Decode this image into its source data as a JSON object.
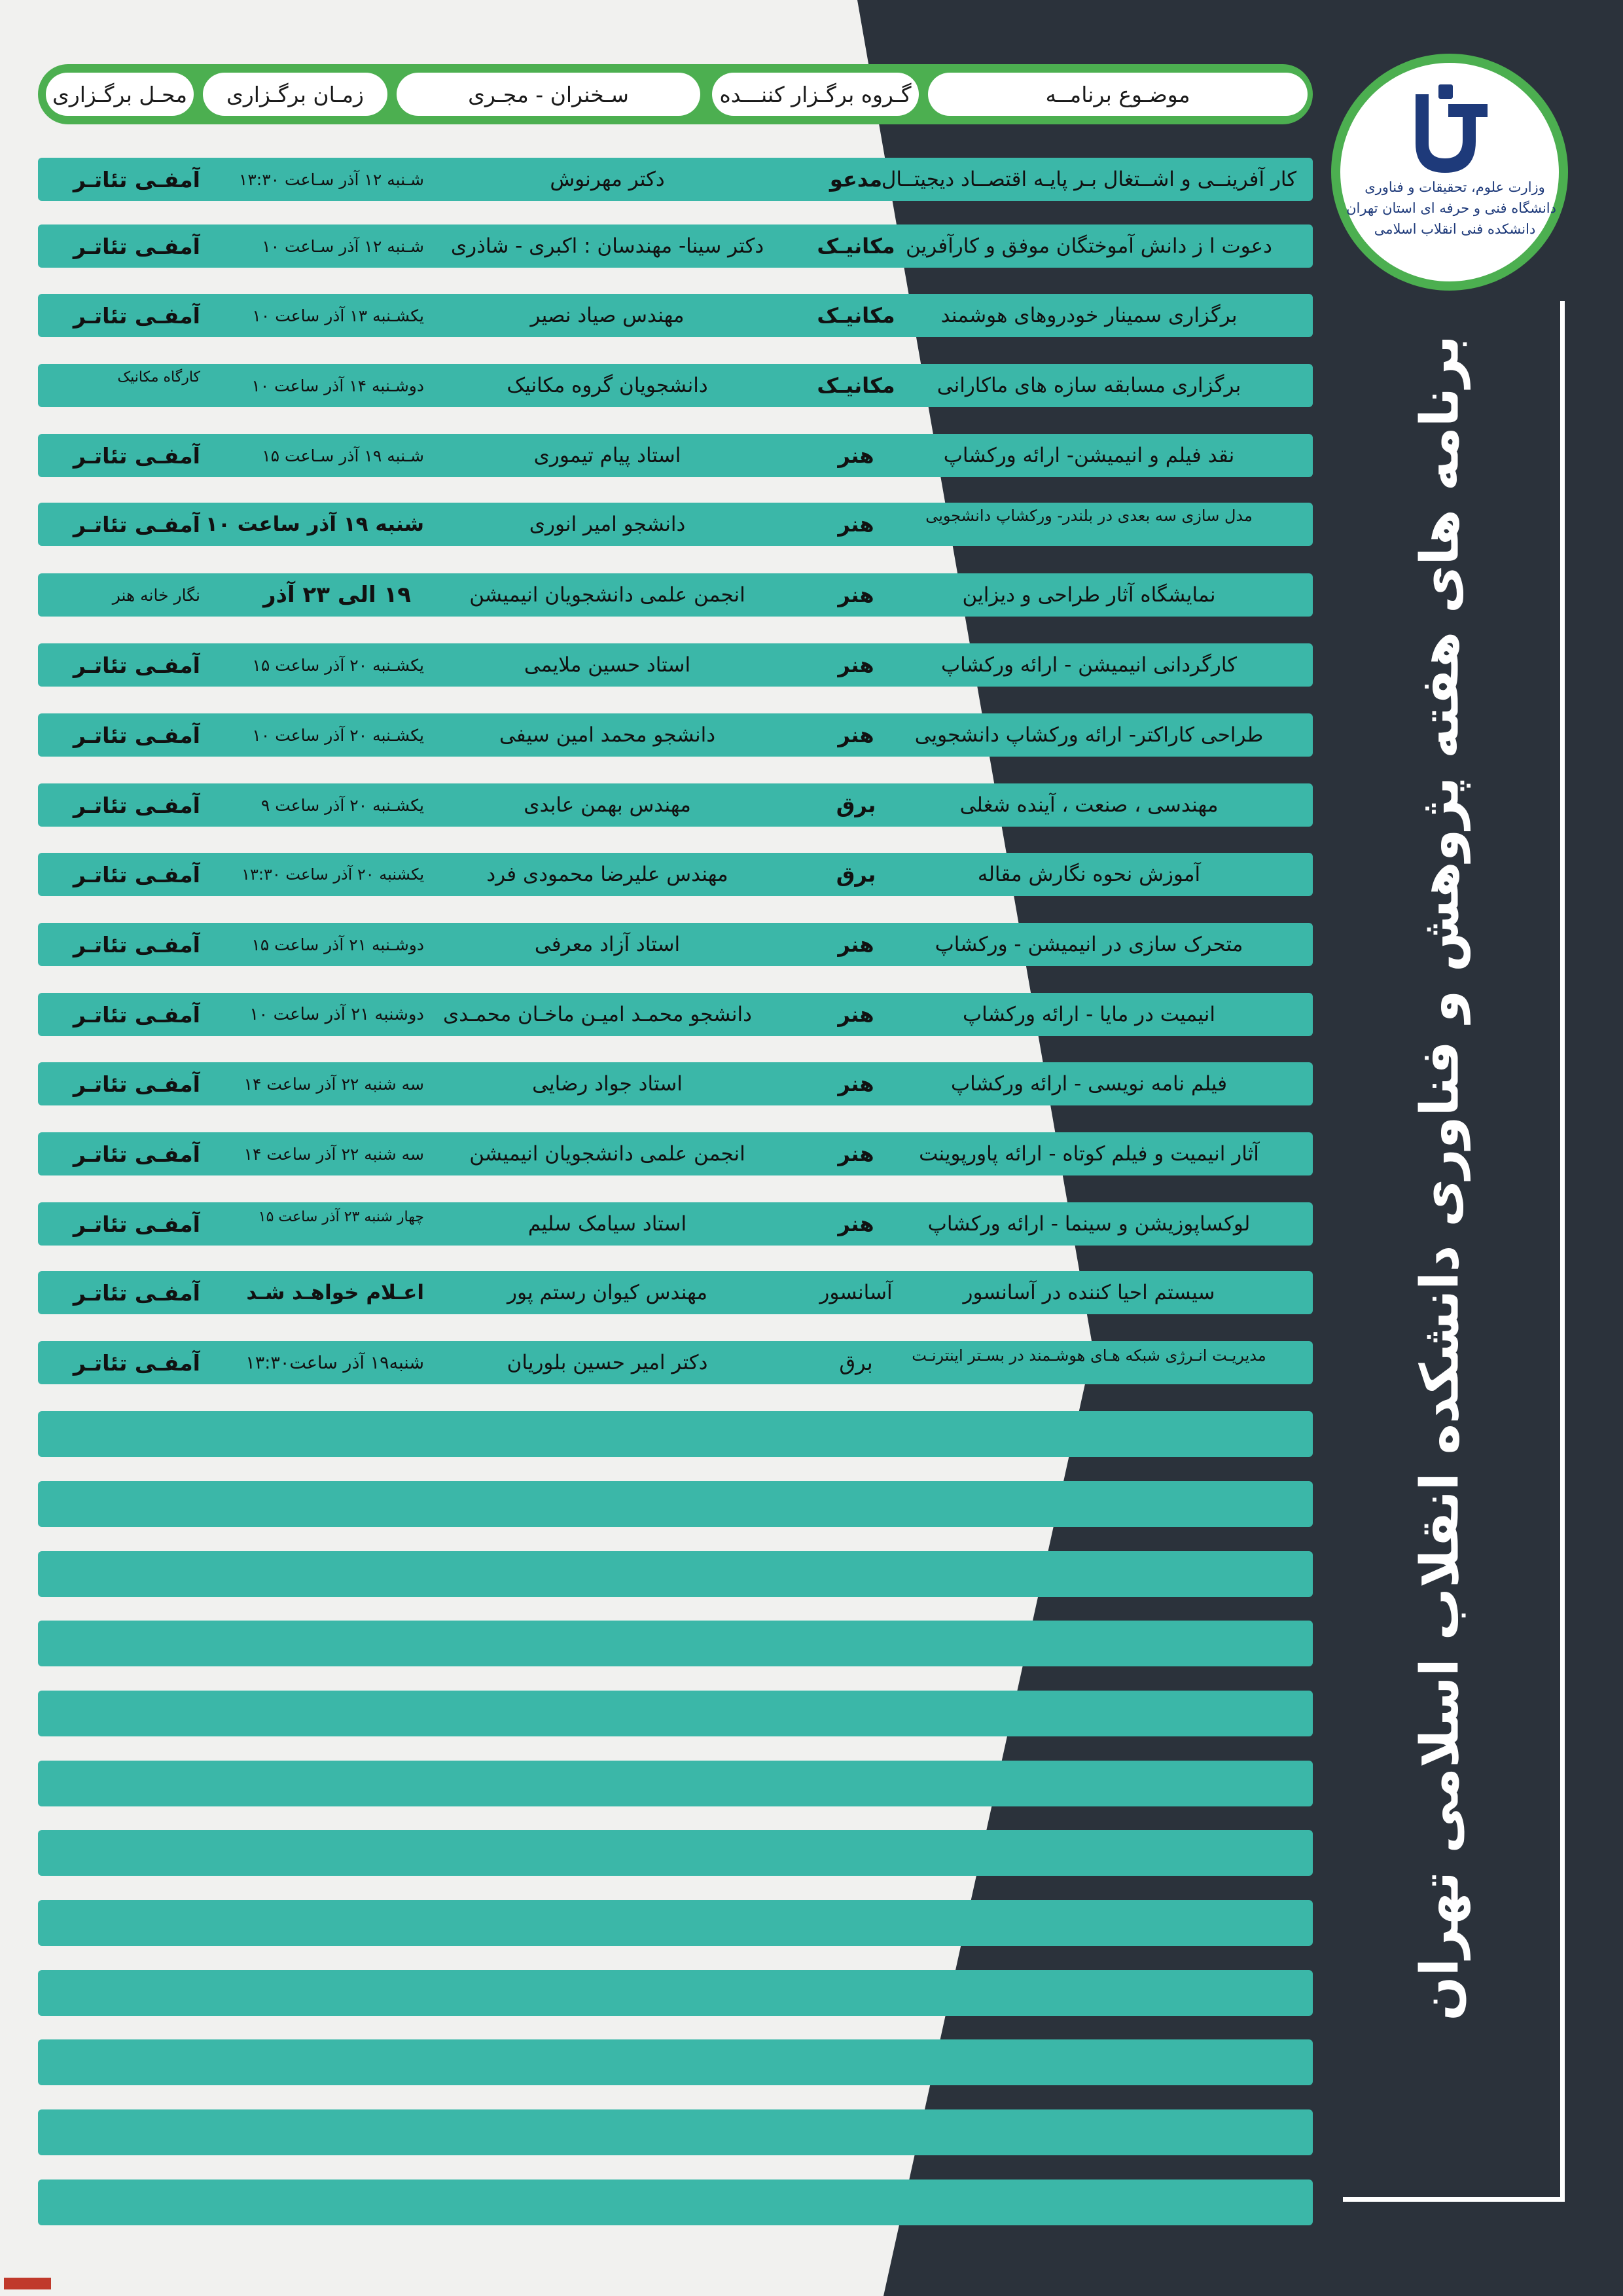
{
  "title": "برنامه های هفته پژوهش و فناوری دانشکده انقلاب اسلامی تهران",
  "logo": {
    "lines": [
      "وزارت علوم، تحقیقات و فناوری",
      "دانشگاه فنی و حرفه ای استان تهران",
      "دانشکده فنی انقلاب اسلامی"
    ],
    "color": "#1e3a7a"
  },
  "header": {
    "subject": "موضـوع برنامــه",
    "group": "گـروه برگـزار کننـــده",
    "speaker": "سـخنران - مجـری",
    "time": "زمـان برگـزاری",
    "location": "محـل برگـزاری"
  },
  "colors": {
    "accent": "#4caf50",
    "row": "#3bb7a8",
    "dark": "#2b323b"
  },
  "rows": [
    {
      "subject": "کار آفرینــی و اشــتغال بـر پایـه اقتصــاد دیجیتــال",
      "group": "مدعو",
      "speaker": "دکتر مهرنوش",
      "time": "شـنبه ۱۲ آذر سـاعت ۱۳:۳۰",
      "location": "آمفـی تئاتـر"
    },
    {
      "subject": "دعوت ا ز دانش آموختگان موفق و کارآفرین",
      "group": "مکانیـک",
      "speaker": "دکتر سینا- مهندسان : اکبری - شاذری",
      "time": "شـنبه ۱۲ آذر سـاعت ۱۰",
      "location": "آمفـی تئاتـر"
    },
    {
      "subject": "برگزاری سمینار خودروهای هوشمند",
      "group": "مکانیـک",
      "speaker": "مهندس صیاد نصیر",
      "time": "یکشـنبه ۱۳ آذر ساعت ۱۰",
      "location": "آمفـی تئاتـر"
    },
    {
      "subject": "برگزاری مسابقه سازه های ماکارانی",
      "group": "مکانیـک",
      "speaker": "دانشجویان گروه مکانیک",
      "time": "دوشـنبه ۱۴ آذر ساعت ۱۰",
      "location": "کارگاه مکانیک"
    },
    {
      "subject": "نقد فیلم و انیمیشن- ارائه ورکشاپ",
      "group": "هنر",
      "speaker": "استاد پیام تیموری",
      "time": "شـنبه ۱۹ آذر سـاعت ۱۵",
      "location": "آمفـی تئاتـر"
    },
    {
      "subject": "مدل سازی سه بعدی در بلندر- ورکشاپ دانشجویی",
      "group": "هنر",
      "speaker": "دانشجو امیر انوری",
      "time": "شنبه ۱۹ آذر ساعت ۱۰",
      "location": "آمفـی تئاتـر"
    },
    {
      "subject": "نمایشگاه آثار طراحی و دیزاین",
      "group": "هنر",
      "speaker": "انجمن علمی دانشجویان انیمیشن",
      "time": "۱۹  الی   ۲۳   آذر",
      "location": "نگار خانه هنر"
    },
    {
      "subject": "کارگردانی انیمیشن - ارائه ورکشاپ",
      "group": "هنر",
      "speaker": "استاد حسین ملایمی",
      "time": "یکشـنبه ۲۰ آذر ساعت ۱۵",
      "location": "آمفـی تئاتـر"
    },
    {
      "subject": "طراحی کاراکتر- ارائه  ورکشاپ دانشجویی",
      "group": "هنر",
      "speaker": "دانشجو محمد امین سیفی",
      "time": "یکشـنبه ۲۰ آذر ساعت ۱۰",
      "location": "آمفـی تئاتـر"
    },
    {
      "subject": "مهندسی ، صنعت ، آینده شغلی",
      "group": "برق",
      "speaker": "مهندس بهمن عابدی",
      "time": "یکشـنبه ۲۰ آذر ساعت  ۹",
      "location": "آمفـی تئاتـر"
    },
    {
      "subject": "آموزش نحوه نگارش مقاله",
      "group": "برق",
      "speaker": "مهندس علیرضا محمودی فرد",
      "time": "یکشنبه ۲۰ آذر ساعت ۱۳:۳۰",
      "location": "آمفـی تئاتـر"
    },
    {
      "subject": "متحرک سازی در انیمیشن - ورکشاپ",
      "group": "هنر",
      "speaker": "استاد آزاد معرفی",
      "time": "دوشـنبه ۲۱ آذر ساعت ۱۵",
      "location": "آمفـی تئاتـر"
    },
    {
      "subject": "انیمیت در مایا - ارائه ورکشاپ",
      "group": "هنر",
      "speaker": "دانشجو محمـد امیـن ماخـان محمـدی",
      "time": "دوشنبه ۲۱ آذر ساعت ۱۰",
      "location": "آمفـی تئاتـر"
    },
    {
      "subject": "فیلم نامه نویسی - ارائه ورکشاپ",
      "group": "هنر",
      "speaker": "استاد جواد رضایی",
      "time": "سه شنبه ۲۲ آذر ساعت ۱۴",
      "location": "آمفـی تئاتـر"
    },
    {
      "subject": "آثار انیمیت و فیلم کوتاه - ارائه پاورپوینت",
      "group": "هنر",
      "speaker": "انجمن علمی دانشجویان انیمیشن",
      "time": "سه شنبه ۲۲ آذر ساعت ۱۴",
      "location": "آمفـی تئاتـر"
    },
    {
      "subject": "لوکساپوزیشن و سینما - ارائه ورکشاپ",
      "group": "هنر",
      "speaker": "استاد سیامک سلیم",
      "time": "چهار شنبه ۲۳ آذر ساعت ۱۵",
      "location": "آمفـی تئاتـر"
    },
    {
      "subject": "سیستم احیا کننده در آسانسور",
      "group": "آسانسور",
      "speaker": "مهندس کیوان رستم پور",
      "time": "اعـلام خواهـد شـد",
      "location": "آمفـی تئاتـر"
    },
    {
      "subject": "مدیریـت انـرژی شبکه هـای هوشـمند در بسـتر اینترنـت",
      "group": "برق",
      "speaker": "دکتر امیر حسین بلوریان",
      "time": "شنبه۱۹ آذر ساعت۱۳:۳۰",
      "location": "آمفـی تئاتـر"
    }
  ]
}
